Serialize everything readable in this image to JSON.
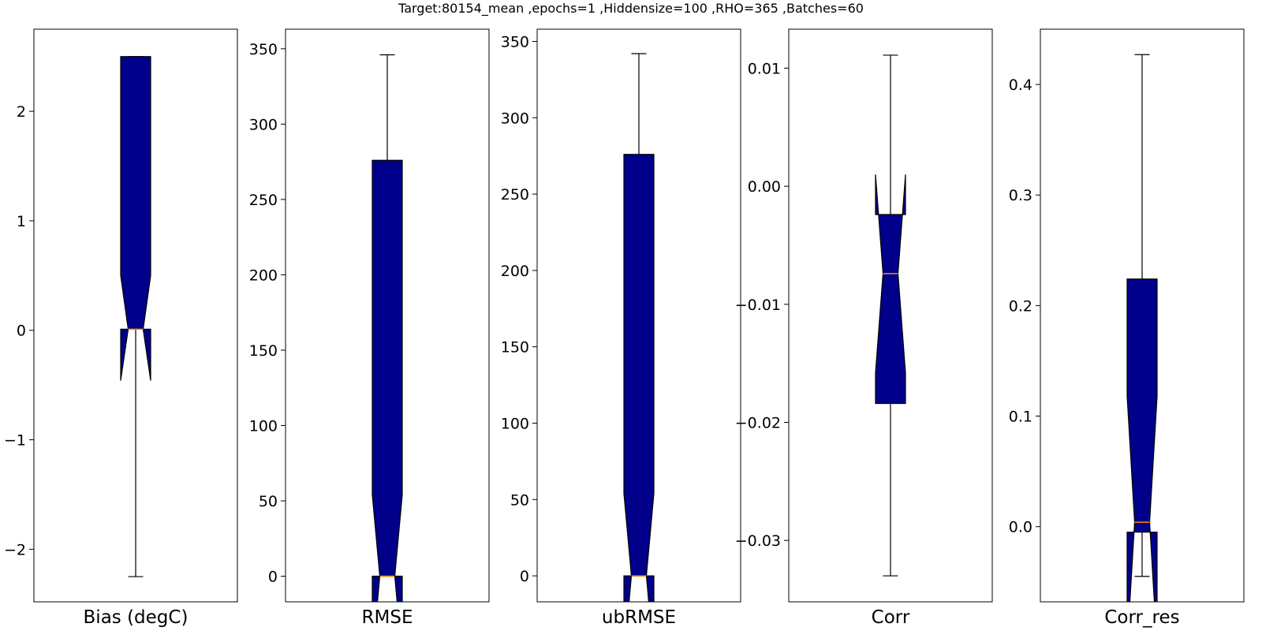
{
  "figure": {
    "title": "Target:80154_mean ,epochs=1 ,Hiddensize=100 ,RHO=365 ,Batches=60"
  },
  "chart_data": [
    {
      "type": "boxplot",
      "xlabel": "Bias (degC)",
      "ylim": [
        -2.48,
        2.75
      ],
      "yticks": [
        -2,
        -1,
        0,
        1,
        2
      ],
      "ytick_labels": [
        "−2",
        "−1",
        "0",
        "1",
        "2"
      ],
      "box": {
        "whisker_low": -2.25,
        "q1": 0.01,
        "median": 0.01,
        "q3": 2.5,
        "whisker_high": 2.5,
        "notch_low": -0.46,
        "notch_high": 0.5
      }
    },
    {
      "type": "boxplot",
      "xlabel": "RMSE",
      "ylim": [
        -17,
        363
      ],
      "yticks": [
        0,
        50,
        100,
        150,
        200,
        250,
        300,
        350
      ],
      "ytick_labels": [
        "0",
        "50",
        "100",
        "150",
        "200",
        "250",
        "300",
        "350"
      ],
      "box": {
        "whisker_low": 0,
        "q1": 0,
        "median": 0,
        "q3": 276,
        "whisker_high": 346,
        "notch_low": -55,
        "notch_high": 54
      }
    },
    {
      "type": "boxplot",
      "xlabel": "ubRMSE",
      "ylim": [
        -17,
        358
      ],
      "yticks": [
        0,
        50,
        100,
        150,
        200,
        250,
        300,
        350
      ],
      "ytick_labels": [
        "0",
        "50",
        "100",
        "150",
        "200",
        "250",
        "300",
        "350"
      ],
      "box": {
        "whisker_low": 0,
        "q1": 0,
        "median": 0,
        "q3": 276,
        "whisker_high": 342,
        "notch_low": -55,
        "notch_high": 54
      }
    },
    {
      "type": "boxplot",
      "xlabel": "Corr",
      "ylim": [
        -0.0352,
        0.0133
      ],
      "yticks": [
        -0.03,
        -0.02,
        -0.01,
        0.0,
        0.01
      ],
      "ytick_labels": [
        "−0.03",
        "−0.02",
        "−0.01",
        "0.00",
        "0.01"
      ],
      "box": {
        "whisker_low": -0.033,
        "q1": -0.0184,
        "median": -0.0074,
        "q3": -0.0024,
        "whisker_high": 0.0111,
        "notch_low": -0.0158,
        "notch_high": 0.001
      }
    },
    {
      "type": "boxplot",
      "xlabel": "Corr_res",
      "ylim": [
        -0.068,
        0.45
      ],
      "yticks": [
        0.0,
        0.1,
        0.2,
        0.3,
        0.4
      ],
      "ytick_labels": [
        "0.0",
        "0.1",
        "0.2",
        "0.3",
        "0.4"
      ],
      "box": {
        "whisker_low": -0.045,
        "q1": -0.005,
        "median": 0.004,
        "q3": 0.224,
        "whisker_high": 0.427,
        "notch_low": -0.11,
        "notch_high": 0.118
      }
    }
  ],
  "colors": {
    "box_fill": "#00008b",
    "median": "#ff8c00",
    "line": "#000000"
  }
}
